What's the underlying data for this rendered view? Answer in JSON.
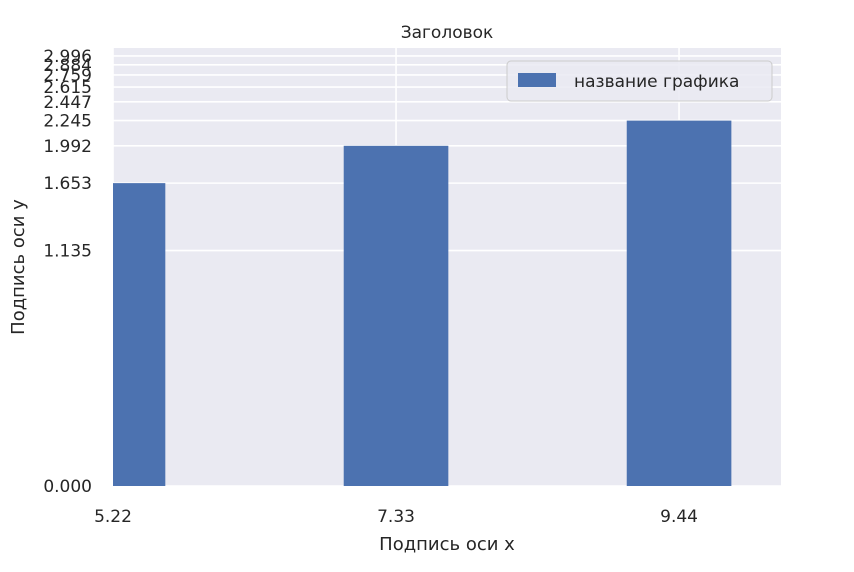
{
  "chart_data": {
    "type": "bar",
    "title": "Заголовок",
    "xlabel": "Подпись оси x",
    "ylabel": "Подпись оси y",
    "x": [
      5.22,
      7.33,
      9.44
    ],
    "x_tick_labels": [
      "5.22",
      "7.33",
      "9.44"
    ],
    "xlim": [
      5.22,
      10.2
    ],
    "series": [
      {
        "name": "название графика",
        "values": [
          1.653,
          1.992,
          2.245
        ]
      }
    ],
    "y_tick_labels": [
      "0.000",
      "1.135",
      "1.653",
      "1.992",
      "2.245",
      "2.447",
      "2.615",
      "2.759",
      "2.884",
      "2.996"
    ],
    "y_ticks": [
      0.0,
      1.135,
      1.653,
      1.992,
      2.245,
      2.447,
      2.615,
      2.759,
      2.884,
      2.996
    ],
    "ylim": [
      0,
      3.1
    ],
    "y_scale": "log1p",
    "bar_width": 0.78,
    "grid": true,
    "legend_position": "top-right",
    "colors": {
      "bar": "#4c72b0",
      "background": "#eaeaf2",
      "grid": "#ffffff"
    }
  }
}
